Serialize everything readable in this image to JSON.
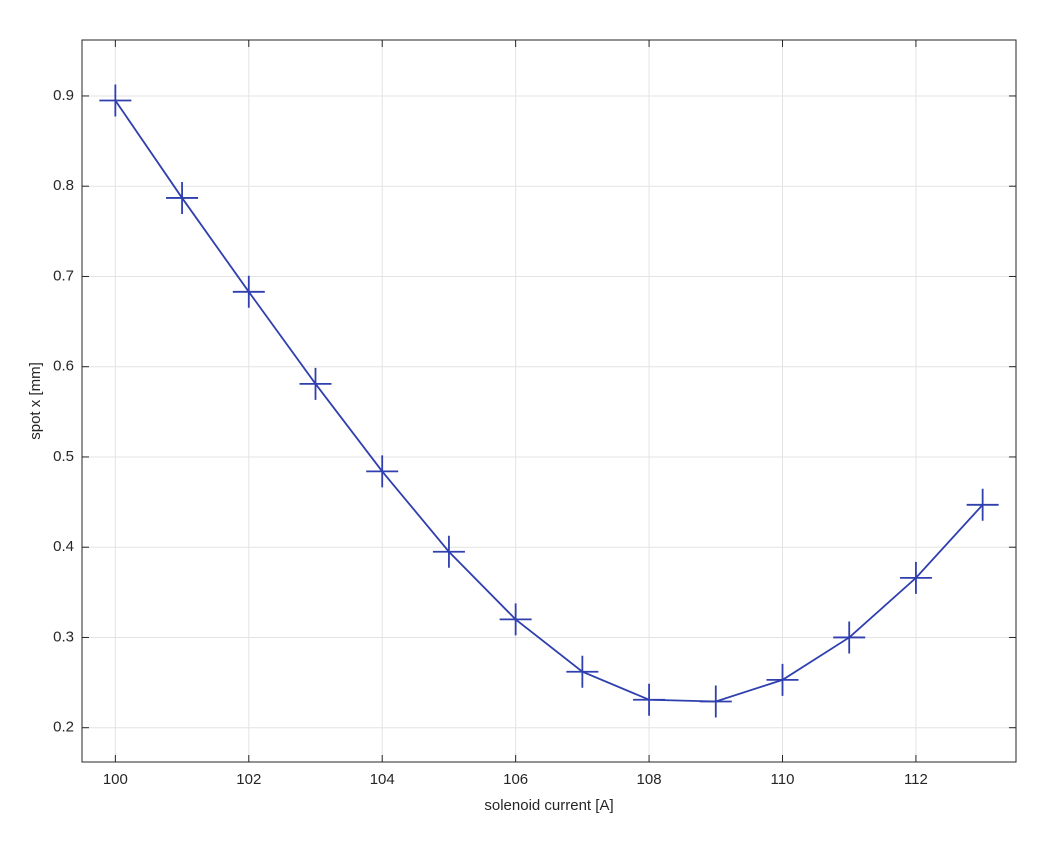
{
  "chart_data": {
    "type": "line",
    "xlabel": "solenoid current [A]",
    "ylabel": "spot x [mm]",
    "x": [
      100,
      101,
      102,
      103,
      104,
      105,
      106,
      107,
      108,
      109,
      110,
      111,
      112,
      113
    ],
    "series": [
      {
        "color": "#2f3fae",
        "marker": "plus",
        "values": [
          0.895,
          0.787,
          0.683,
          0.581,
          0.484,
          0.395,
          0.32,
          0.262,
          0.231,
          0.229,
          0.253,
          0.3,
          0.366,
          0.447
        ]
      }
    ],
    "xlim": [
      99.5,
      113.5
    ],
    "xticks": [
      100,
      102,
      104,
      106,
      108,
      110,
      112
    ],
    "ylim": [
      0.162,
      0.962
    ],
    "yticks": [
      0.2,
      0.3,
      0.4,
      0.5,
      0.6,
      0.7,
      0.8,
      0.9
    ],
    "grid": true
  }
}
